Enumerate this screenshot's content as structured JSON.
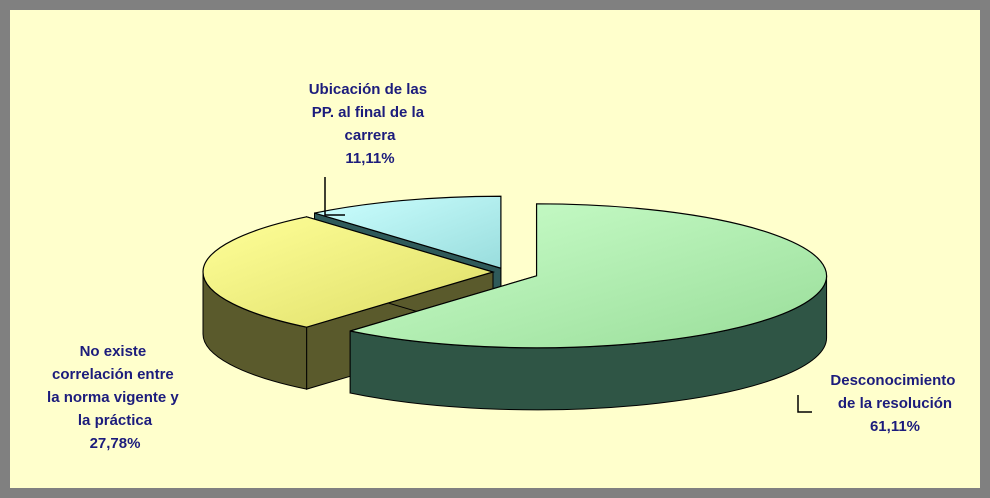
{
  "chart_data": {
    "type": "pie",
    "categories": [
      "Desconocimiento de la resolución",
      "No existe correlación entre la norma vigente y la práctica",
      "Ubicación de las PP. al final de la carrera"
    ],
    "values": [
      61.11,
      27.78,
      11.11
    ],
    "value_labels": [
      "61,11%",
      "27,78%",
      "11,11%"
    ],
    "colors": [
      "#ccffcc",
      "#ffff99",
      "#ccffff"
    ],
    "three_d": true
  }
}
